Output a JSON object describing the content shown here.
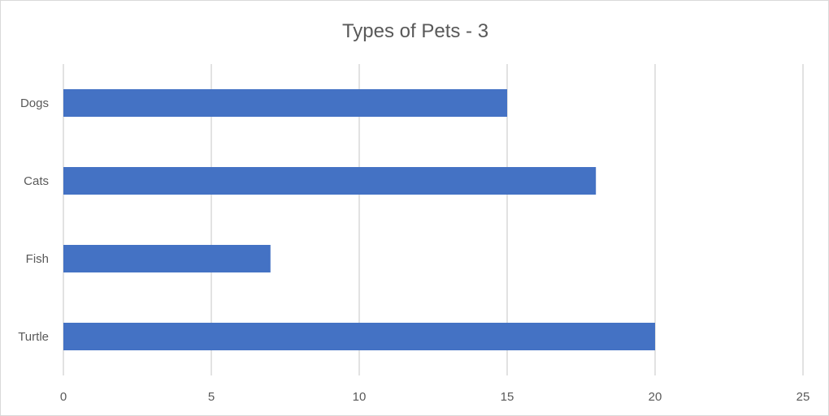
{
  "chart_data": {
    "type": "bar",
    "orientation": "horizontal",
    "title": "Types of Pets - 3",
    "categories": [
      "Dogs",
      "Cats",
      "Fish",
      "Turtle"
    ],
    "values": [
      15,
      18,
      7,
      20
    ],
    "xlabel": "",
    "ylabel": "",
    "xlim": [
      0,
      25
    ],
    "x_ticks": [
      "0",
      "5",
      "10",
      "15",
      "20",
      "25"
    ],
    "grid": "vertical gridlines on",
    "legend": "none",
    "bar_color": "#4472c4"
  }
}
